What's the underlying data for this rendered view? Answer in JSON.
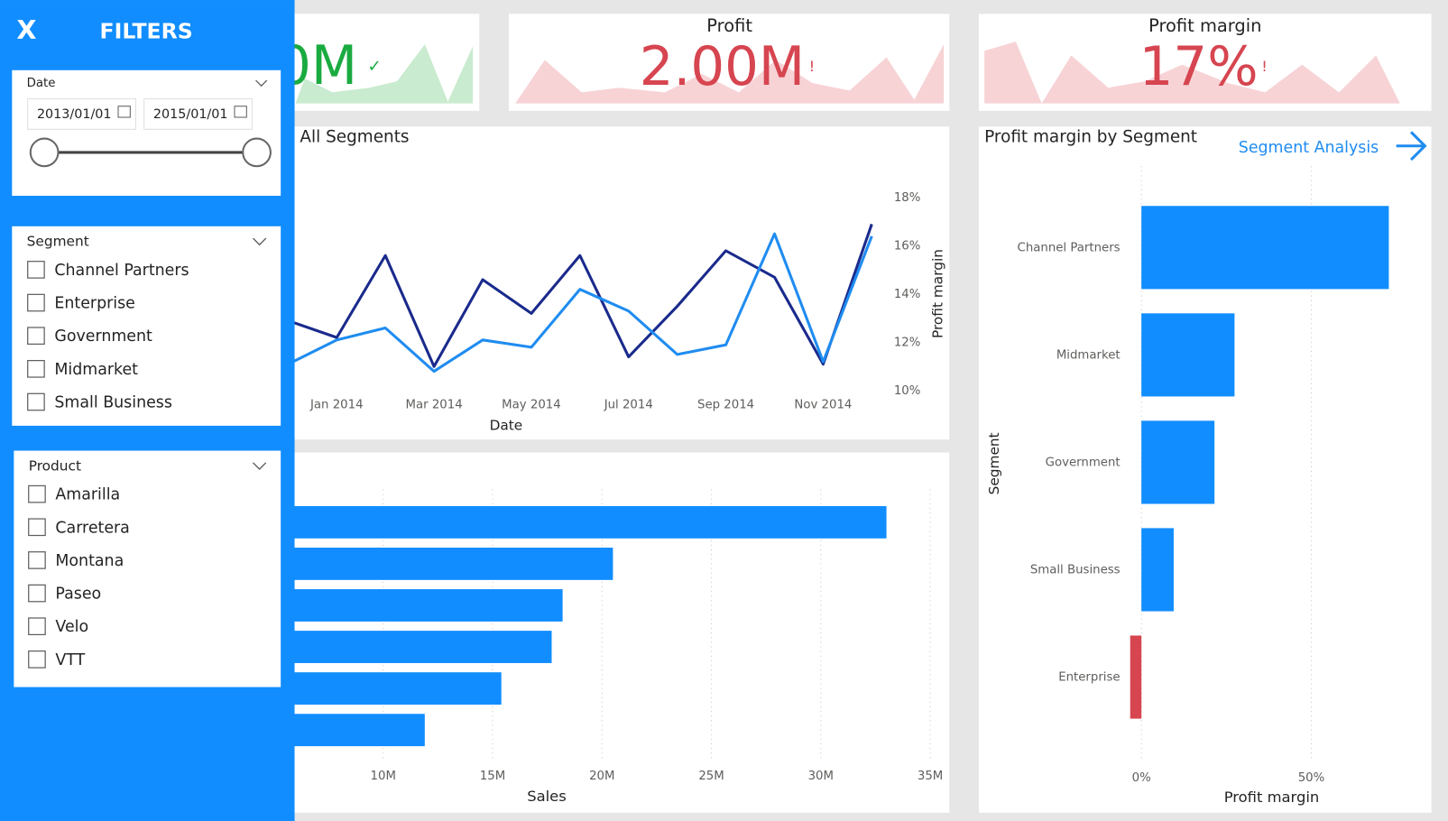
{
  "filter_pane": {
    "close": "X",
    "title": "FILTERS",
    "date": {
      "label": "Date",
      "start": "2013/01/01",
      "end": "2015/01/01"
    },
    "segment": {
      "label": "Segment",
      "options": [
        "Channel Partners",
        "Enterprise",
        "Government",
        "Midmarket",
        "Small Business"
      ]
    },
    "product": {
      "label": "Product",
      "options": [
        "Amarilla",
        "Carretera",
        "Montana",
        "Paseo",
        "Velo",
        "VTT"
      ]
    }
  },
  "kpis": [
    {
      "value": "0M",
      "indicator": "✓"
    },
    {
      "title": "Profit",
      "value": "2.00M",
      "indicator": "!"
    },
    {
      "title": "Profit margin",
      "value": "17%",
      "indicator": "!"
    }
  ],
  "chart_data": [
    {
      "type": "line",
      "title": ": All Segments",
      "x_label": "Date",
      "y2_label": "Profit margin",
      "categories": [
        null,
        "Jan 2014",
        null,
        "Mar 2014",
        null,
        "May 2014",
        null,
        "Jul 2014",
        null,
        "Sep 2014",
        null,
        "Nov 2014",
        null
      ],
      "y2lim": [
        10,
        18
      ],
      "y2ticks": [
        {
          "value": 10,
          "label": "10%"
        },
        {
          "value": 12,
          "label": "12%"
        },
        {
          "value": 14,
          "label": "14%"
        },
        {
          "value": 16,
          "label": "16%"
        },
        {
          "value": 18,
          "label": "18%"
        }
      ],
      "series": [
        {
          "color": "#1a2a8c",
          "axis": "y2",
          "values": [
            12.9,
            12.2,
            15.6,
            11.0,
            14.6,
            13.2,
            15.6,
            11.4,
            13.5,
            15.8,
            14.7,
            11.1,
            16.9
          ]
        },
        {
          "color": "#1f8cf0",
          "axis": "y2",
          "values": [
            11.1,
            12.1,
            12.6,
            10.8,
            12.1,
            11.8,
            14.2,
            13.3,
            11.5,
            11.9,
            16.5,
            11.2,
            16.4
          ]
        }
      ]
    },
    {
      "type": "bar",
      "orientation": "horizontal",
      "x_label": "Sales",
      "values": [
        33000000,
        20500000,
        18200000,
        17700000,
        15400000,
        11900000
      ],
      "color": "#118dff",
      "xlim": [
        0,
        36000000
      ],
      "xticks": [
        {
          "value": 10000000,
          "label": "10M"
        },
        {
          "value": 15000000,
          "label": "15M"
        },
        {
          "value": 20000000,
          "label": "20M"
        },
        {
          "value": 25000000,
          "label": "25M"
        },
        {
          "value": 30000000,
          "label": "30M"
        },
        {
          "value": 35000000,
          "label": "35M"
        }
      ],
      "grid": true
    },
    {
      "type": "bar",
      "orientation": "horizontal",
      "title": "Profit margin by Segment",
      "link": "Segment Analysis",
      "y_label": "Segment",
      "x_label": "Profit margin",
      "categories": [
        "Channel Partners",
        "Midmarket",
        "Government",
        "Small Business",
        "Enterprise"
      ],
      "values": [
        72.8,
        27.4,
        21.5,
        9.5,
        -3.3
      ],
      "colors": [
        "#118dff",
        "#118dff",
        "#118dff",
        "#118dff",
        "#d64550"
      ],
      "xlim": [
        -5,
        80
      ],
      "xticks": [
        {
          "value": 0,
          "label": "0%"
        },
        {
          "value": 50,
          "label": "50%"
        }
      ],
      "grid": true
    }
  ]
}
